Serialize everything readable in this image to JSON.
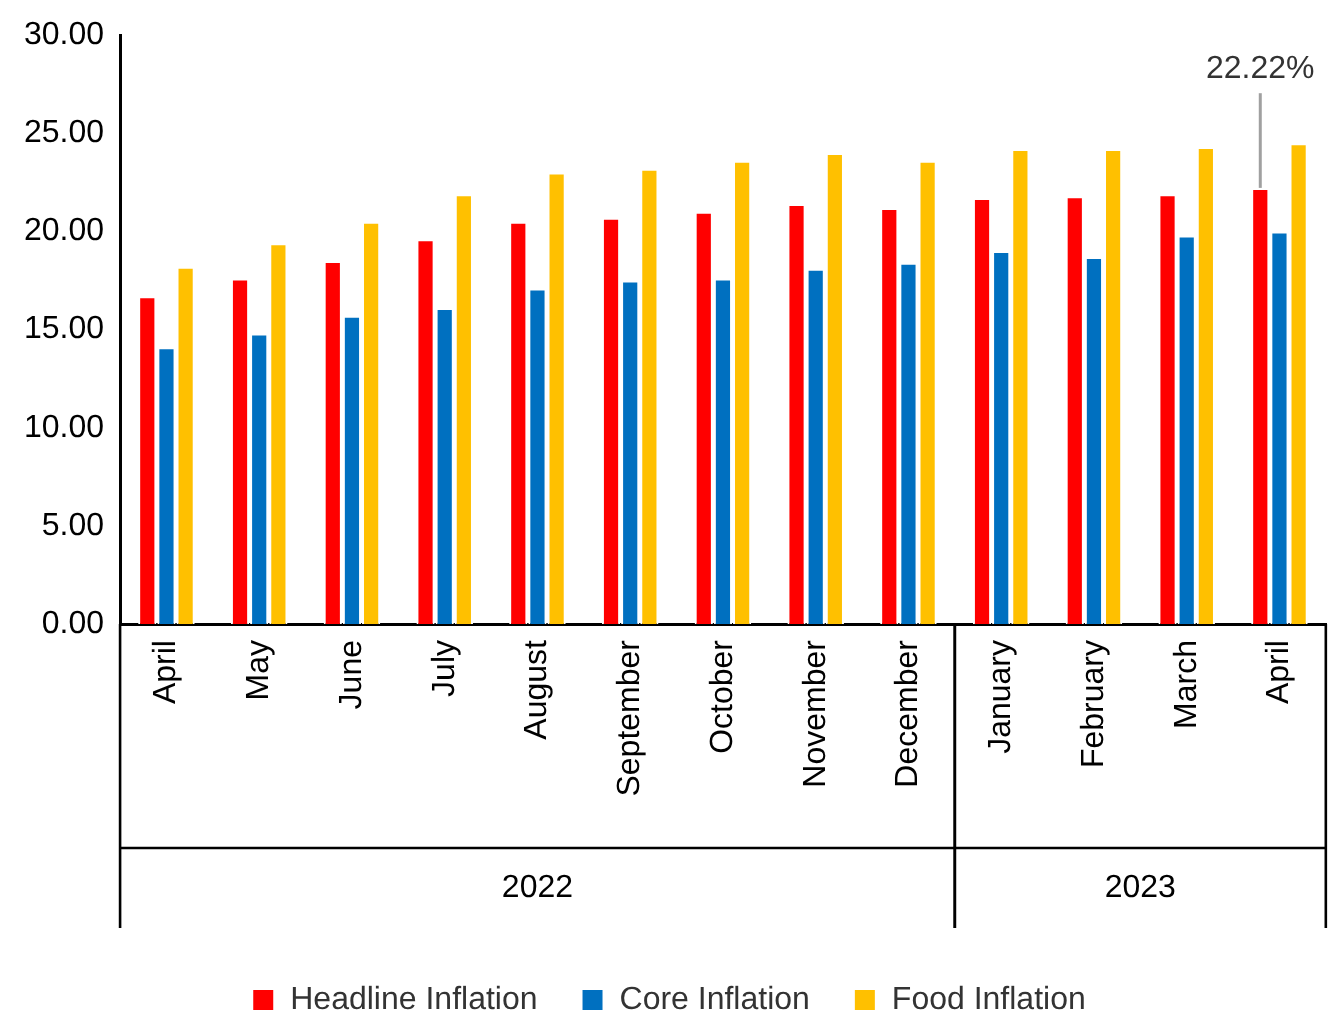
{
  "chart_data": {
    "type": "bar",
    "categories": [
      "April",
      "May",
      "June",
      "July",
      "August",
      "September",
      "October",
      "November",
      "December",
      "January",
      "February",
      "March",
      "April"
    ],
    "series": [
      {
        "name": "Headline Inflation",
        "color": "#ff0000",
        "values": [
          16.7,
          17.6,
          18.5,
          19.6,
          20.5,
          20.7,
          21.0,
          21.4,
          21.2,
          21.7,
          21.8,
          21.9,
          22.22
        ],
        "value_labels": [
          null,
          null,
          null,
          null,
          null,
          null,
          null,
          null,
          null,
          null,
          null,
          null,
          "22.22%"
        ]
      },
      {
        "name": "Core Inflation",
        "color": "#0070c0",
        "values": [
          14.1,
          14.8,
          15.7,
          16.1,
          17.1,
          17.5,
          17.6,
          18.1,
          18.4,
          19.0,
          18.7,
          19.8,
          20.0
        ]
      },
      {
        "name": "Food Inflation",
        "color": "#ffc000",
        "values": [
          18.2,
          19.4,
          20.5,
          21.9,
          23.0,
          23.2,
          23.6,
          24.0,
          23.6,
          24.2,
          24.2,
          24.3,
          24.5
        ]
      }
    ],
    "ylim": [
      0,
      30
    ],
    "yticks": [
      {
        "value": 0,
        "label": "0.00"
      },
      {
        "value": 5,
        "label": "5.00"
      },
      {
        "value": 10,
        "label": "10.00"
      },
      {
        "value": 15,
        "label": "15.00"
      },
      {
        "value": 20,
        "label": "20.00"
      },
      {
        "value": 25,
        "label": "25.00"
      },
      {
        "value": 30,
        "label": "30.00"
      }
    ],
    "annotations": [
      "2022",
      "2023"
    ],
    "grid": false,
    "legend": "bottom"
  }
}
